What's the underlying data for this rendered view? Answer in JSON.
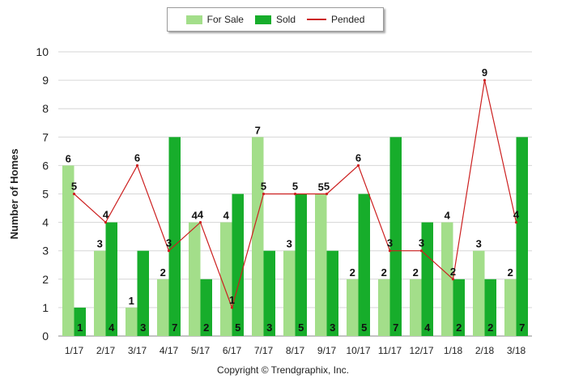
{
  "legend": {
    "for_sale": "For Sale",
    "sold": "Sold",
    "pended": "Pended"
  },
  "colors": {
    "for_sale": "#a3de8a",
    "sold": "#17ad2b",
    "pended": "#cc1f1f"
  },
  "copyright": "Copyright © Trendgraphix, Inc.",
  "chart_data": {
    "type": "bar",
    "ylabel": "Number of Homes",
    "xlabel": "",
    "ylim": [
      0,
      10
    ],
    "yticks": [
      0,
      1,
      2,
      3,
      4,
      5,
      6,
      7,
      8,
      9,
      10
    ],
    "grid": true,
    "legend_position": "top-center",
    "categories": [
      "1/17",
      "2/17",
      "3/17",
      "4/17",
      "5/17",
      "6/17",
      "7/17",
      "8/17",
      "9/17",
      "10/17",
      "11/17",
      "12/17",
      "1/18",
      "2/18",
      "3/18"
    ],
    "series": [
      {
        "name": "For Sale",
        "type": "bar",
        "values": [
          6,
          3,
          1,
          2,
          4,
          4,
          7,
          3,
          5,
          2,
          2,
          2,
          4,
          3,
          2
        ]
      },
      {
        "name": "Sold",
        "type": "bar",
        "values": [
          1,
          4,
          3,
          7,
          2,
          5,
          3,
          5,
          3,
          5,
          7,
          4,
          2,
          2,
          7
        ]
      },
      {
        "name": "Pended",
        "type": "line",
        "values": [
          5,
          4,
          6,
          3,
          4,
          1,
          5,
          5,
          5,
          6,
          3,
          3,
          2,
          9,
          4
        ]
      }
    ]
  }
}
